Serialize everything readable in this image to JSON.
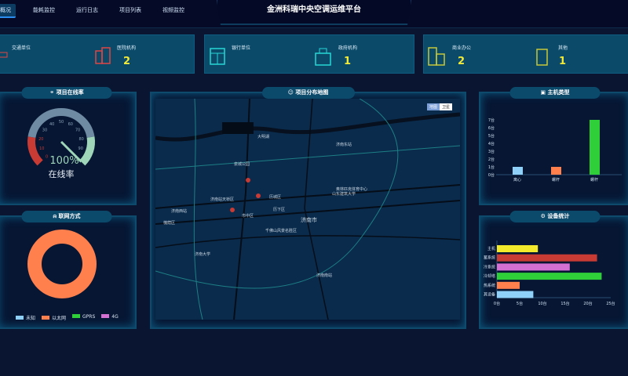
{
  "header": {
    "title": "金洲科瑞中央空调运维平台",
    "nav": [
      "概况",
      "能耗监控",
      "运行日志",
      "项目列表",
      "视频监控"
    ]
  },
  "stats": [
    {
      "label": "交通单位",
      "value": "",
      "icon": "car-icon",
      "color": "#e04545"
    },
    {
      "label": "医院机构",
      "value": "2",
      "icon": "hospital-icon",
      "color": "#e04545"
    },
    {
      "label": "银行单位",
      "value": "",
      "icon": "bank-icon",
      "color": "#26d6d6"
    },
    {
      "label": "政府机构",
      "value": "1",
      "icon": "government-icon",
      "color": "#26d6d6"
    },
    {
      "label": "商业办公",
      "value": "2",
      "icon": "office-icon",
      "color": "#c8c838"
    },
    {
      "label": "其他",
      "value": "1",
      "icon": "building-icon",
      "color": "#c8c838"
    }
  ],
  "online": {
    "title": "项目在线率",
    "value": "100%",
    "label": "在线率",
    "percent": 100,
    "ticks": [
      "0",
      "10",
      "20",
      "30",
      "40",
      "50",
      "60",
      "70",
      "80",
      "90"
    ]
  },
  "network": {
    "title": "联网方式",
    "legend": [
      {
        "name": "未知",
        "color": "#8fd0f8"
      },
      {
        "name": "以太网",
        "color": "#ff7f4d"
      },
      {
        "name": "GPRS",
        "color": "#2fcf3a"
      },
      {
        "name": "4G",
        "color": "#d470d4"
      }
    ],
    "values": [
      0,
      1,
      0,
      0
    ]
  },
  "map": {
    "title": "项目分布地图",
    "btn_map": "地图",
    "btn_sat": "卫星",
    "labels": [
      "济南市",
      "天桥区",
      "历城区",
      "历下区",
      "槐荫区",
      "市中区",
      "济南西站",
      "济南东站",
      "济南站",
      "济南大学",
      "千佛山风景名胜区",
      "山东建筑大学",
      "泉城公园",
      "奥林匹克体育中心",
      "大明湖",
      "济南南站"
    ]
  },
  "chart_data": [
    {
      "type": "bar",
      "title": "主机类型",
      "categories": [
        "离心",
        "螺杆",
        "螺杆"
      ],
      "values": [
        1,
        1,
        7
      ],
      "colors": [
        "#8fd0f8",
        "#ff7f4d",
        "#2fcf3a"
      ],
      "ylim": [
        0,
        7
      ],
      "yticks": [
        "0台",
        "1台",
        "2台",
        "3台",
        "4台",
        "5台",
        "6台",
        "7台"
      ]
    },
    {
      "type": "bar",
      "orientation": "horizontal",
      "title": "设备统计",
      "categories": [
        "主机",
        "蓄系统",
        "冷系统",
        "冷却塔",
        "热系统",
        "其设备"
      ],
      "values": [
        9,
        22,
        16,
        23,
        5,
        8
      ],
      "colors": [
        "#f2ea2a",
        "#c83a34",
        "#d470d4",
        "#2fcf3a",
        "#ff7f4d",
        "#8fd0f8"
      ],
      "xlim": [
        0,
        25
      ],
      "xticks": [
        "0台",
        "5台",
        "10台",
        "15台",
        "20台",
        "25台"
      ]
    }
  ]
}
